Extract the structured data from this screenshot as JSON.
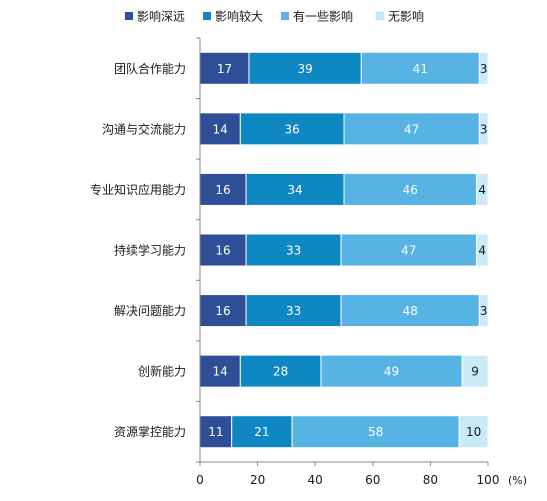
{
  "chart_data": {
    "type": "bar",
    "orientation": "horizontal",
    "stacked": true,
    "categories": [
      "团队合作能力",
      "沟通与交流能力",
      "专业知识应用能力",
      "持续学习能力",
      "解决问题能力",
      "创新能力",
      "资源掌控能力"
    ],
    "series": [
      {
        "name": "影响深远",
        "color": "#2e4e97",
        "values": [
          17,
          14,
          16,
          16,
          16,
          14,
          11
        ]
      },
      {
        "name": "影响较大",
        "color": "#0f87c3",
        "values": [
          39,
          36,
          34,
          33,
          33,
          28,
          21
        ]
      },
      {
        "name": "有一些影响",
        "color": "#56b3e3",
        "values": [
          41,
          47,
          46,
          47,
          48,
          49,
          58
        ]
      },
      {
        "name": "无影响",
        "color": "#c9eaf6",
        "values": [
          3,
          3,
          4,
          4,
          3,
          9,
          10
        ]
      }
    ],
    "xlim": [
      0,
      100
    ],
    "xticks": [
      0,
      20,
      40,
      60,
      80,
      100
    ],
    "x_unit": "(%)",
    "legend_position": "top",
    "grid": false,
    "label_colors": {
      "dark": "#ffffff",
      "light": "#1a1a1a"
    }
  }
}
